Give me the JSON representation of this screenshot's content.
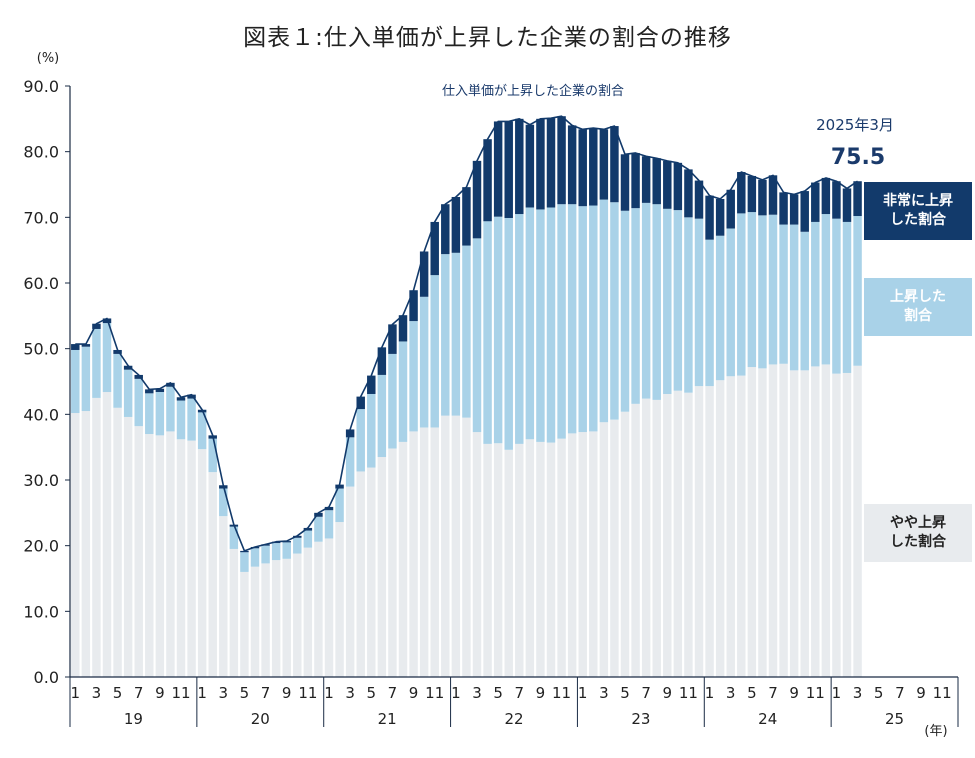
{
  "title": "図表１:仕入単価が上昇した企業の割合の推移",
  "chart_data": {
    "type": "bar",
    "stacked": true,
    "title": "図表１:仕入単価が上昇した企業の割合の推移",
    "subtitle": "仕入単価が上昇した企業の割合",
    "ylabel": "(%)",
    "xlabel": "(年)",
    "ylim": [
      0,
      90
    ],
    "yticks": [
      "0.0",
      "10.0",
      "20.0",
      "30.0",
      "40.0",
      "50.0",
      "60.0",
      "70.0",
      "80.0",
      "90.0"
    ],
    "xtick_months": [
      "1",
      "3",
      "5",
      "7",
      "9",
      "11"
    ],
    "years": [
      "19",
      "20",
      "21",
      "22",
      "23",
      "24",
      "25"
    ],
    "x_unit": "(年)",
    "series": [
      {
        "name": "やや上昇した割合",
        "label": [
          "やや上昇",
          "した割合"
        ],
        "color": "#e8ebee",
        "values": [
          40.2,
          40.5,
          42.5,
          43.4,
          41.0,
          39.6,
          38.2,
          37.0,
          36.8,
          37.4,
          36.2,
          36.0,
          34.7,
          31.2,
          24.5,
          19.5,
          16.0,
          16.8,
          17.3,
          17.8,
          18.0,
          18.8,
          19.7,
          20.6,
          21.1,
          23.6,
          29.0,
          31.3,
          31.9,
          33.5,
          34.8,
          35.8,
          37.4,
          38.0,
          38.0,
          39.8,
          39.8,
          39.5,
          37.3,
          35.5,
          35.6,
          34.6,
          35.5,
          36.2,
          35.8,
          35.7,
          36.3,
          37.1,
          37.3,
          37.4,
          38.8,
          39.2,
          40.4,
          41.6,
          42.4,
          42.2,
          43.1,
          43.6,
          43.3,
          44.3,
          44.3,
          45.2,
          45.8,
          45.9,
          47.2,
          47.0,
          47.6,
          47.7,
          46.7,
          46.7,
          47.3,
          47.6,
          46.2,
          46.3,
          47.4
        ]
      },
      {
        "name": "上昇した割合",
        "label": [
          "上昇した",
          "割合"
        ],
        "color": "#a9d2e8",
        "values": [
          9.6,
          9.8,
          10.5,
          10.5,
          8.2,
          7.2,
          7.2,
          6.2,
          6.6,
          6.8,
          5.9,
          6.4,
          5.6,
          5.1,
          4.2,
          3.4,
          3.0,
          2.8,
          2.7,
          2.6,
          2.5,
          2.4,
          2.6,
          3.8,
          4.3,
          5.1,
          7.5,
          9.5,
          11.2,
          12.5,
          14.4,
          15.3,
          16.8,
          19.9,
          23.2,
          24.6,
          24.8,
          26.2,
          29.5,
          33.9,
          34.5,
          35.3,
          35.0,
          35.3,
          35.4,
          35.8,
          35.7,
          34.9,
          34.4,
          34.4,
          33.9,
          33.1,
          30.6,
          29.8,
          29.8,
          29.8,
          28.2,
          27.5,
          26.7,
          25.5,
          22.3,
          22.0,
          22.5,
          24.7,
          23.6,
          23.3,
          22.8,
          21.2,
          22.2,
          21.1,
          22.0,
          22.9,
          23.6,
          23.0,
          22.8
        ]
      },
      {
        "name": "非常に上昇した割合",
        "label": [
          "非常に上昇",
          "した割合"
        ],
        "color": "#123a6b",
        "values": [
          0.9,
          0.4,
          0.8,
          0.7,
          0.6,
          0.6,
          0.6,
          0.6,
          0.5,
          0.6,
          0.5,
          0.6,
          0.4,
          0.5,
          0.5,
          0.3,
          0.2,
          0.2,
          0.2,
          0.2,
          0.2,
          0.3,
          0.4,
          0.6,
          0.5,
          0.6,
          1.2,
          1.9,
          2.8,
          4.2,
          4.5,
          4.0,
          4.7,
          6.9,
          8.1,
          7.6,
          8.5,
          8.9,
          11.8,
          12.5,
          14.5,
          14.7,
          14.5,
          12.6,
          13.8,
          13.6,
          13.4,
          12.0,
          11.7,
          11.8,
          10.7,
          11.6,
          8.6,
          8.4,
          7.1,
          7.0,
          7.3,
          7.2,
          7.3,
          5.8,
          6.7,
          5.6,
          5.9,
          6.3,
          5.5,
          5.4,
          6.0,
          4.9,
          4.6,
          6.2,
          6.0,
          5.5,
          5.7,
          5.1,
          5.3
        ]
      }
    ],
    "annotation": {
      "label": "2025年3月",
      "value": "75.5"
    }
  }
}
